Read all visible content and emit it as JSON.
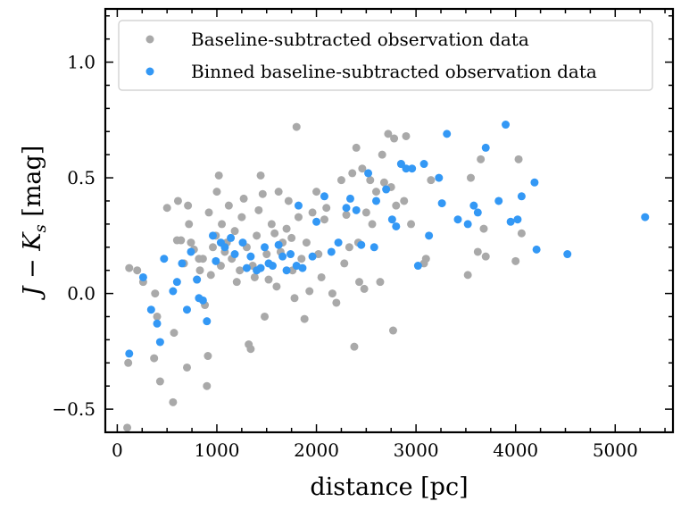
{
  "chart_data": {
    "type": "scatter",
    "xlabel": "distance [pc]",
    "ylabel": "J − K",
    "ylabel_sub": "s",
    "ylabel_unit": " [mag]",
    "xlim": [
      -120,
      5580
    ],
    "ylim": [
      -0.6,
      1.23
    ],
    "xticks": [
      0,
      1000,
      2000,
      3000,
      4000,
      5000
    ],
    "xtick_labels": [
      "0",
      "1000",
      "2000",
      "3000",
      "4000",
      "5000"
    ],
    "yticks": [
      -0.5,
      0.0,
      0.5,
      1.0
    ],
    "ytick_labels": [
      "−0.5",
      "0.0",
      "0.5",
      "1.0"
    ],
    "grid": false,
    "legend_position": "top-left",
    "series": [
      {
        "name": "Baseline-subtracted observation data",
        "color": "#a9a9a9",
        "points": [
          [
            100,
            -0.58
          ],
          [
            110,
            -0.3
          ],
          [
            120,
            0.11
          ],
          [
            200,
            0.1
          ],
          [
            260,
            0.05
          ],
          [
            370,
            -0.28
          ],
          [
            380,
            0.0
          ],
          [
            400,
            -0.1
          ],
          [
            430,
            -0.38
          ],
          [
            500,
            0.37
          ],
          [
            560,
            -0.47
          ],
          [
            570,
            -0.17
          ],
          [
            600,
            0.23
          ],
          [
            610,
            0.4
          ],
          [
            640,
            0.23
          ],
          [
            670,
            0.13
          ],
          [
            700,
            -0.32
          ],
          [
            710,
            0.38
          ],
          [
            720,
            0.3
          ],
          [
            740,
            0.22
          ],
          [
            770,
            0.19
          ],
          [
            800,
            0.06
          ],
          [
            820,
            0.15
          ],
          [
            830,
            0.1
          ],
          [
            860,
            0.15
          ],
          [
            880,
            -0.05
          ],
          [
            900,
            -0.4
          ],
          [
            910,
            -0.27
          ],
          [
            920,
            0.35
          ],
          [
            940,
            0.08
          ],
          [
            960,
            0.2
          ],
          [
            990,
            0.25
          ],
          [
            1000,
            0.44
          ],
          [
            1020,
            0.51
          ],
          [
            1040,
            0.12
          ],
          [
            1050,
            0.3
          ],
          [
            1080,
            0.18
          ],
          [
            1100,
            0.22
          ],
          [
            1120,
            0.38
          ],
          [
            1150,
            0.15
          ],
          [
            1180,
            0.27
          ],
          [
            1200,
            0.05
          ],
          [
            1230,
            0.1
          ],
          [
            1250,
            0.33
          ],
          [
            1270,
            0.41
          ],
          [
            1300,
            0.2
          ],
          [
            1320,
            -0.22
          ],
          [
            1340,
            -0.24
          ],
          [
            1360,
            0.12
          ],
          [
            1380,
            0.07
          ],
          [
            1400,
            0.25
          ],
          [
            1420,
            0.36
          ],
          [
            1440,
            0.51
          ],
          [
            1460,
            0.43
          ],
          [
            1480,
            -0.1
          ],
          [
            1500,
            0.17
          ],
          [
            1520,
            0.06
          ],
          [
            1550,
            0.3
          ],
          [
            1580,
            0.26
          ],
          [
            1600,
            0.03
          ],
          [
            1620,
            0.44
          ],
          [
            1640,
            0.18
          ],
          [
            1660,
            0.22
          ],
          [
            1700,
            0.28
          ],
          [
            1720,
            0.4
          ],
          [
            1750,
            0.24
          ],
          [
            1760,
            0.1
          ],
          [
            1780,
            -0.02
          ],
          [
            1800,
            0.72
          ],
          [
            1820,
            0.33
          ],
          [
            1850,
            0.15
          ],
          [
            1880,
            -0.11
          ],
          [
            1900,
            0.22
          ],
          [
            1930,
            0.01
          ],
          [
            1960,
            0.35
          ],
          [
            2000,
            0.44
          ],
          [
            2020,
            0.17
          ],
          [
            2050,
            0.07
          ],
          [
            2080,
            0.32
          ],
          [
            2100,
            0.37
          ],
          [
            2160,
            0.0
          ],
          [
            2200,
            -0.04
          ],
          [
            2250,
            0.49
          ],
          [
            2280,
            0.13
          ],
          [
            2300,
            0.34
          ],
          [
            2330,
            0.2
          ],
          [
            2360,
            0.52
          ],
          [
            2380,
            -0.23
          ],
          [
            2400,
            0.63
          ],
          [
            2420,
            0.22
          ],
          [
            2430,
            0.05
          ],
          [
            2460,
            0.54
          ],
          [
            2480,
            0.02
          ],
          [
            2500,
            0.35
          ],
          [
            2540,
            0.49
          ],
          [
            2560,
            0.3
          ],
          [
            2600,
            0.44
          ],
          [
            2640,
            0.05
          ],
          [
            2660,
            0.6
          ],
          [
            2680,
            0.48
          ],
          [
            2720,
            0.69
          ],
          [
            2750,
            0.46
          ],
          [
            2770,
            -0.16
          ],
          [
            2780,
            0.67
          ],
          [
            2800,
            0.38
          ],
          [
            2850,
            0.56
          ],
          [
            2880,
            0.4
          ],
          [
            2900,
            0.68
          ],
          [
            2950,
            0.3
          ],
          [
            3080,
            0.13
          ],
          [
            3100,
            0.15
          ],
          [
            3150,
            0.49
          ],
          [
            3520,
            0.08
          ],
          [
            3550,
            0.5
          ],
          [
            3620,
            0.18
          ],
          [
            3650,
            0.58
          ],
          [
            3680,
            0.28
          ],
          [
            3700,
            0.16
          ],
          [
            4000,
            0.14
          ],
          [
            4030,
            0.58
          ],
          [
            4060,
            0.26
          ]
        ]
      },
      {
        "name": "Binned baseline-subtracted observation data",
        "color": "#3398f5",
        "points": [
          [
            120,
            -0.26
          ],
          [
            260,
            0.07
          ],
          [
            340,
            -0.07
          ],
          [
            400,
            -0.13
          ],
          [
            430,
            -0.21
          ],
          [
            470,
            0.15
          ],
          [
            560,
            0.01
          ],
          [
            600,
            0.05
          ],
          [
            650,
            0.13
          ],
          [
            700,
            -0.07
          ],
          [
            740,
            0.18
          ],
          [
            800,
            0.06
          ],
          [
            820,
            -0.02
          ],
          [
            860,
            -0.03
          ],
          [
            900,
            -0.12
          ],
          [
            960,
            0.25
          ],
          [
            990,
            0.14
          ],
          [
            1040,
            0.22
          ],
          [
            1080,
            0.2
          ],
          [
            1140,
            0.24
          ],
          [
            1180,
            0.17
          ],
          [
            1260,
            0.22
          ],
          [
            1300,
            0.11
          ],
          [
            1340,
            0.16
          ],
          [
            1400,
            0.1
          ],
          [
            1440,
            0.11
          ],
          [
            1480,
            0.2
          ],
          [
            1520,
            0.13
          ],
          [
            1560,
            0.12
          ],
          [
            1620,
            0.21
          ],
          [
            1660,
            0.16
          ],
          [
            1700,
            0.1
          ],
          [
            1740,
            0.17
          ],
          [
            1800,
            0.12
          ],
          [
            1820,
            0.38
          ],
          [
            1860,
            0.11
          ],
          [
            1960,
            0.16
          ],
          [
            2000,
            0.31
          ],
          [
            2080,
            0.42
          ],
          [
            2150,
            0.18
          ],
          [
            2220,
            0.22
          ],
          [
            2300,
            0.37
          ],
          [
            2340,
            0.41
          ],
          [
            2400,
            0.36
          ],
          [
            2450,
            0.21
          ],
          [
            2520,
            0.52
          ],
          [
            2580,
            0.2
          ],
          [
            2600,
            0.4
          ],
          [
            2700,
            0.45
          ],
          [
            2760,
            0.32
          ],
          [
            2800,
            0.29
          ],
          [
            2850,
            0.56
          ],
          [
            2900,
            0.54
          ],
          [
            2960,
            0.54
          ],
          [
            3020,
            0.12
          ],
          [
            3080,
            0.56
          ],
          [
            3130,
            0.25
          ],
          [
            3230,
            0.5
          ],
          [
            3260,
            0.39
          ],
          [
            3310,
            0.69
          ],
          [
            3420,
            0.32
          ],
          [
            3520,
            0.3
          ],
          [
            3580,
            0.38
          ],
          [
            3620,
            0.35
          ],
          [
            3700,
            0.63
          ],
          [
            3830,
            0.4
          ],
          [
            3900,
            0.73
          ],
          [
            3950,
            0.31
          ],
          [
            4020,
            0.32
          ],
          [
            4060,
            0.42
          ],
          [
            4190,
            0.48
          ],
          [
            4210,
            0.19
          ],
          [
            4520,
            0.17
          ],
          [
            5300,
            0.33
          ]
        ]
      }
    ]
  }
}
